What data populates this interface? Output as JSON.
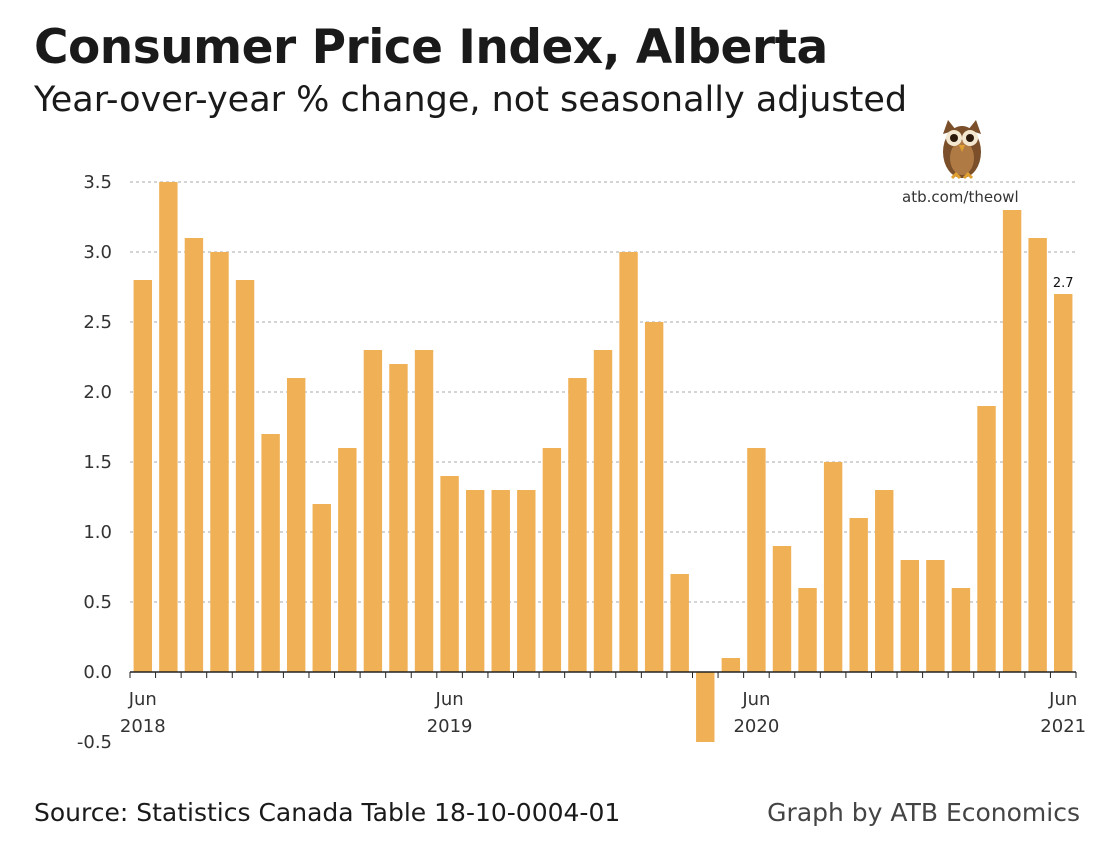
{
  "title": "Consumer Price Index, Alberta",
  "subtitle": "Year-over-year % change, not seasonally adjusted",
  "source": "Source: Statistics Canada Table 18-10-0004-01",
  "credit": "Graph by ATB Economics",
  "brand": {
    "url": "atb.com/theowl",
    "icon": "owl-icon"
  },
  "colors": {
    "bar": "#F0B055",
    "grid": "#aaaaaa",
    "axis": "#222222"
  },
  "chart_data": {
    "type": "bar",
    "title": "Consumer Price Index, Alberta",
    "subtitle": "Year-over-year % change, not seasonally adjusted",
    "xlabel": "",
    "ylabel": "",
    "ylim": [
      -0.5,
      3.5
    ],
    "yticks": [
      "-0.5",
      "0.0",
      "0.5",
      "1.0",
      "1.5",
      "2.0",
      "2.5",
      "3.0",
      "3.5"
    ],
    "grid": true,
    "x_tick_labels": [
      {
        "index": 0,
        "month": "Jun",
        "year": "2018"
      },
      {
        "index": 12,
        "month": "Jun",
        "year": "2019"
      },
      {
        "index": 24,
        "month": "Jun",
        "year": "2020"
      },
      {
        "index": 36,
        "month": "Jun",
        "year": "2021"
      }
    ],
    "categories": [
      "Jun 2018",
      "Jul 2018",
      "Aug 2018",
      "Sep 2018",
      "Oct 2018",
      "Nov 2018",
      "Dec 2018",
      "Jan 2019",
      "Feb 2019",
      "Mar 2019",
      "Apr 2019",
      "May 2019",
      "Jun 2019",
      "Jul 2019",
      "Aug 2019",
      "Sep 2019",
      "Oct 2019",
      "Nov 2019",
      "Dec 2019",
      "Jan 2020",
      "Feb 2020",
      "Mar 2020",
      "Apr 2020",
      "May 2020",
      "Jun 2020",
      "Jul 2020",
      "Aug 2020",
      "Sep 2020",
      "Oct 2020",
      "Nov 2020",
      "Dec 2020",
      "Jan 2021",
      "Feb 2021",
      "Mar 2021",
      "Apr 2021",
      "May 2021",
      "Jun 2021"
    ],
    "values": [
      2.8,
      3.5,
      3.1,
      3.0,
      2.8,
      1.7,
      2.1,
      1.2,
      1.6,
      2.3,
      2.2,
      2.3,
      1.4,
      1.3,
      1.3,
      1.3,
      1.6,
      2.1,
      2.3,
      3.0,
      2.5,
      0.7,
      -0.5,
      0.1,
      1.6,
      0.9,
      0.6,
      1.5,
      1.1,
      1.3,
      0.8,
      0.8,
      0.6,
      1.9,
      3.3,
      3.1,
      2.7
    ],
    "data_labels": [
      {
        "index": 36,
        "text": "2.7"
      }
    ]
  }
}
